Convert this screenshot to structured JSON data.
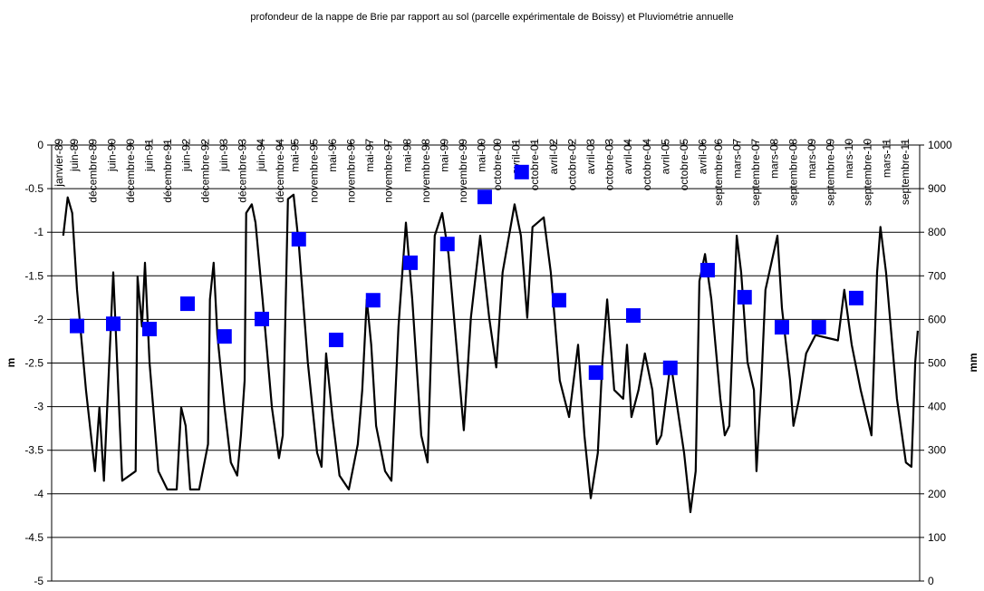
{
  "chart_data": {
    "type": "line",
    "title": "profondeur de la nappe de Brie par rapport au sol (parcelle expérimentale de Boissy) et Pluviométrie annuelle",
    "ylabel": "m",
    "y2label": "mm",
    "xlim": [
      1988.81,
      2012.06
    ],
    "xticks": [
      {
        "value": 1989.0,
        "label": "janvier-89"
      },
      {
        "value": 1989.42,
        "label": "juin-89"
      },
      {
        "value": 1989.92,
        "label": "décembre-89"
      },
      {
        "value": 1990.42,
        "label": "juin-90"
      },
      {
        "value": 1990.92,
        "label": "décembre-90"
      },
      {
        "value": 1991.42,
        "label": "juin-91"
      },
      {
        "value": 1991.92,
        "label": "décembre-91"
      },
      {
        "value": 1992.42,
        "label": "juin-92"
      },
      {
        "value": 1992.92,
        "label": "décembre-92"
      },
      {
        "value": 1993.42,
        "label": "juin-93"
      },
      {
        "value": 1993.92,
        "label": "décembre-93"
      },
      {
        "value": 1994.42,
        "label": "juin-94"
      },
      {
        "value": 1994.92,
        "label": "décembre-94"
      },
      {
        "value": 1995.33,
        "label": "mai-95"
      },
      {
        "value": 1995.83,
        "label": "novembre-95"
      },
      {
        "value": 1996.33,
        "label": "mai-96"
      },
      {
        "value": 1996.83,
        "label": "novembre-96"
      },
      {
        "value": 1997.33,
        "label": "mai-97"
      },
      {
        "value": 1997.83,
        "label": "novembre-97"
      },
      {
        "value": 1998.33,
        "label": "mai-98"
      },
      {
        "value": 1998.83,
        "label": "novembre-98"
      },
      {
        "value": 1999.33,
        "label": "mai-99"
      },
      {
        "value": 1999.83,
        "label": "novembre-99"
      },
      {
        "value": 2000.33,
        "label": "mai-00"
      },
      {
        "value": 2000.75,
        "label": "octobre-00"
      },
      {
        "value": 2001.25,
        "label": "avril-01"
      },
      {
        "value": 2001.75,
        "label": "octobre-01"
      },
      {
        "value": 2002.25,
        "label": "avril-02"
      },
      {
        "value": 2002.75,
        "label": "octobre-02"
      },
      {
        "value": 2003.25,
        "label": "avril-03"
      },
      {
        "value": 2003.75,
        "label": "octobre-03"
      },
      {
        "value": 2004.25,
        "label": "avril-04"
      },
      {
        "value": 2004.75,
        "label": "octobre-04"
      },
      {
        "value": 2005.25,
        "label": "avril-05"
      },
      {
        "value": 2005.75,
        "label": "octobre-05"
      },
      {
        "value": 2006.25,
        "label": "avril-06"
      },
      {
        "value": 2006.67,
        "label": "septembre-06"
      },
      {
        "value": 2007.17,
        "label": "mars-07"
      },
      {
        "value": 2007.67,
        "label": "septembre-07"
      },
      {
        "value": 2008.17,
        "label": "mars-08"
      },
      {
        "value": 2008.67,
        "label": "septembre-08"
      },
      {
        "value": 2009.17,
        "label": "mars-09"
      },
      {
        "value": 2009.67,
        "label": "septembre-09"
      },
      {
        "value": 2010.17,
        "label": "mars-10"
      },
      {
        "value": 2010.67,
        "label": "septembre-10"
      },
      {
        "value": 2011.17,
        "label": "mars-11"
      },
      {
        "value": 2011.67,
        "label": "septembre-11"
      }
    ],
    "ylim": [
      -5,
      0
    ],
    "yticks": [
      0,
      -0.5,
      -1,
      -1.5,
      -2,
      -2.5,
      -3,
      -3.5,
      -4,
      -4.5,
      -5
    ],
    "y2lim": [
      0,
      1000
    ],
    "y2ticks": [
      0,
      100,
      200,
      300,
      400,
      500,
      600,
      700,
      800,
      900,
      1000
    ],
    "grid": true,
    "series": [
      {
        "color": "#000000",
        "kind": "line",
        "x": [
          1989.12,
          1989.24,
          1989.36,
          1989.49,
          1989.73,
          1989.97,
          1990.09,
          1990.21,
          1990.46,
          1990.7,
          1991.06,
          1991.11,
          1991.23,
          1991.31,
          1991.43,
          1991.67,
          1991.91,
          1992.16,
          1992.28,
          1992.4,
          1992.52,
          1992.76,
          1993.0,
          1993.05,
          1993.15,
          1993.25,
          1993.44,
          1993.61,
          1993.78,
          1993.88,
          1993.98,
          1994.02,
          1994.17,
          1994.27,
          1994.46,
          1994.71,
          1994.9,
          1995.0,
          1995.14,
          1995.29,
          1995.43,
          1995.67,
          1995.92,
          1996.04,
          1996.16,
          1996.33,
          1996.52,
          1996.77,
          1997.01,
          1997.13,
          1997.25,
          1997.37,
          1997.5,
          1997.74,
          1997.91,
          1998.1,
          1998.3,
          1998.47,
          1998.71,
          1998.88,
          1999.07,
          1999.27,
          1999.44,
          1999.85,
          2000.04,
          2000.29,
          2000.53,
          2000.72,
          2000.89,
          2001.21,
          2001.38,
          2001.55,
          2001.69,
          2001.99,
          2002.18,
          2002.42,
          2002.67,
          2002.91,
          2003.08,
          2003.25,
          2003.44,
          2003.56,
          2003.69,
          2003.88,
          2004.12,
          2004.22,
          2004.34,
          2004.53,
          2004.7,
          2004.9,
          2005.02,
          2005.14,
          2005.39,
          2005.5,
          2005.75,
          2005.92,
          2006.06,
          2006.16,
          2006.31,
          2006.48,
          2006.72,
          2006.84,
          2006.96,
          2007.16,
          2007.28,
          2007.45,
          2007.62,
          2007.69,
          2007.81,
          2007.93,
          2008.25,
          2008.37,
          2008.59,
          2008.68,
          2008.83,
          2009.02,
          2009.27,
          2009.87,
          2010.04,
          2010.24,
          2010.48,
          2010.77,
          2010.92,
          2011.01,
          2011.16,
          2011.45,
          2011.69,
          2011.84,
          2011.94,
          2012.01
        ],
        "values": [
          -1.04,
          -0.6,
          -0.78,
          -1.66,
          -2.81,
          -3.74,
          -3.01,
          -3.85,
          -1.46,
          -3.85,
          -3.74,
          -1.51,
          -2.08,
          -1.35,
          -2.49,
          -3.74,
          -3.95,
          -3.95,
          -3.01,
          -3.22,
          -3.95,
          -3.95,
          -3.43,
          -1.77,
          -1.35,
          -2.18,
          -3.01,
          -3.64,
          -3.79,
          -3.33,
          -2.7,
          -0.78,
          -0.68,
          -0.89,
          -1.77,
          -3.01,
          -3.59,
          -3.33,
          -0.62,
          -0.57,
          -1.14,
          -2.49,
          -3.53,
          -3.69,
          -2.39,
          -3.12,
          -3.79,
          -3.95,
          -3.43,
          -2.81,
          -1.77,
          -2.29,
          -3.22,
          -3.74,
          -3.85,
          -2.08,
          -0.89,
          -1.77,
          -3.33,
          -3.64,
          -1.04,
          -0.78,
          -1.25,
          -3.27,
          -1.98,
          -1.04,
          -1.98,
          -2.55,
          -1.46,
          -0.68,
          -1.04,
          -1.98,
          -0.94,
          -0.83,
          -1.46,
          -2.7,
          -3.12,
          -2.29,
          -3.33,
          -4.05,
          -3.53,
          -2.49,
          -1.77,
          -2.81,
          -2.91,
          -2.29,
          -3.12,
          -2.81,
          -2.39,
          -2.81,
          -3.43,
          -3.33,
          -2.49,
          -2.81,
          -3.53,
          -4.21,
          -3.74,
          -1.56,
          -1.25,
          -1.77,
          -2.91,
          -3.33,
          -3.22,
          -1.04,
          -1.46,
          -2.49,
          -2.81,
          -3.74,
          -2.81,
          -1.66,
          -1.04,
          -1.87,
          -2.7,
          -3.22,
          -2.91,
          -2.39,
          -2.18,
          -2.24,
          -1.66,
          -2.29,
          -2.81,
          -3.33,
          -1.46,
          -0.94,
          -1.46,
          -2.91,
          -3.64,
          -3.69,
          -2.49,
          -2.13
        ]
      },
      {
        "color": "#0000ff",
        "kind": "marker",
        "axis": "y2",
        "x": [
          1989.49,
          1990.46,
          1991.43,
          1992.45,
          1993.44,
          1994.44,
          1995.43,
          1996.43,
          1997.42,
          1998.42,
          1999.41,
          2000.41,
          2001.4,
          2002.4,
          2003.39,
          2004.39,
          2005.38,
          2006.38,
          2007.37,
          2008.37,
          2009.36,
          2010.36
        ],
        "values": [
          585,
          590,
          578,
          636,
          561,
          601,
          784,
          553,
          644,
          730,
          773,
          881,
          938,
          644,
          478,
          609,
          489,
          713,
          651,
          582,
          582,
          649
        ]
      }
    ]
  }
}
